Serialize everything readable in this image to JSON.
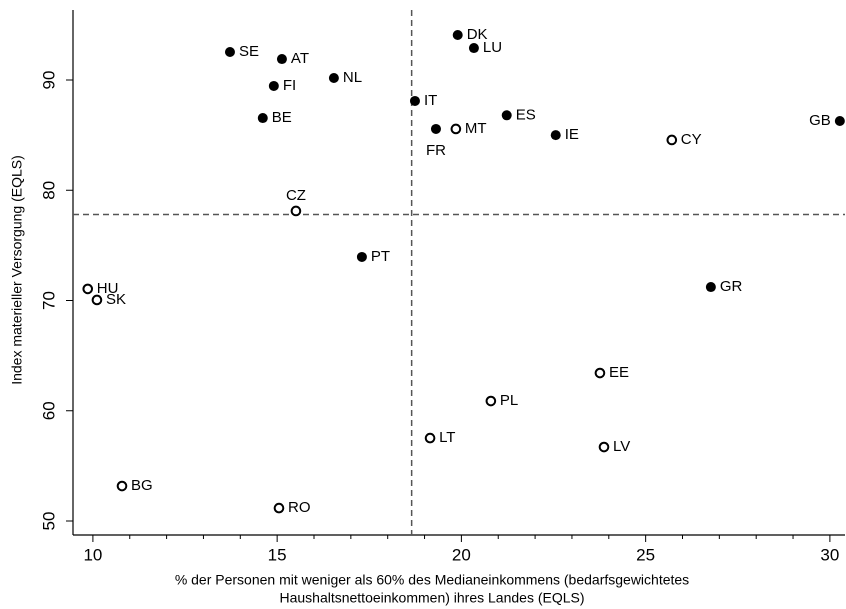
{
  "chart_data": {
    "type": "scatter",
    "xlabel": [
      "% der Personen mit weniger als 60% des Medianeinkommens (bedarfsgewichtetes",
      "Haushaltsnettoeinkommen) ihres Landes (EQLS)"
    ],
    "ylabel": "Index materieller Versorgung (EQLS)",
    "xlim": [
      9.46,
      30.41
    ],
    "ylim": [
      48.73,
      96.35
    ],
    "xticks": [
      10,
      15,
      20,
      25,
      30
    ],
    "yticks": [
      50,
      60,
      70,
      80,
      90
    ],
    "xminorticks": [
      11,
      12,
      13,
      14,
      16,
      17,
      18,
      19,
      21,
      22,
      23,
      24,
      26,
      27,
      28,
      29
    ],
    "vlines": [
      18.65
    ],
    "hlines": [
      77.8
    ],
    "color": "#000000",
    "points": [
      {
        "label": "SE",
        "x": 13.72,
        "y": 92.54,
        "filled": true
      },
      {
        "label": "AT",
        "x": 15.13,
        "y": 91.9,
        "filled": true
      },
      {
        "label": "FI",
        "x": 14.91,
        "y": 89.46,
        "filled": true
      },
      {
        "label": "NL",
        "x": 16.54,
        "y": 90.18,
        "filled": true
      },
      {
        "label": "BE",
        "x": 14.61,
        "y": 86.55,
        "filled": true
      },
      {
        "label": "DK",
        "x": 19.9,
        "y": 94.08,
        "filled": true
      },
      {
        "label": "LU",
        "x": 20.34,
        "y": 92.9,
        "filled": true
      },
      {
        "label": "IT",
        "x": 18.74,
        "y": 88.1,
        "filled": true
      },
      {
        "label": "ES",
        "x": 21.23,
        "y": 86.8,
        "filled": true
      },
      {
        "label": "FR",
        "x": 19.31,
        "y": 85.56,
        "filled": true
      },
      {
        "label": "MT",
        "x": 19.85,
        "y": 85.56,
        "filled": false
      },
      {
        "label": "IE",
        "x": 22.56,
        "y": 85.0,
        "filled": true
      },
      {
        "label": "CY",
        "x": 25.71,
        "y": 84.56,
        "filled": false
      },
      {
        "label": "GB",
        "x": 30.27,
        "y": 86.28,
        "filled": true
      },
      {
        "label": "CZ",
        "x": 15.51,
        "y": 78.12,
        "filled": false
      },
      {
        "label": "PT",
        "x": 17.3,
        "y": 73.95,
        "filled": true
      },
      {
        "label": "HU",
        "x": 9.86,
        "y": 71.05,
        "filled": false
      },
      {
        "label": "SK",
        "x": 10.11,
        "y": 70.05,
        "filled": false
      },
      {
        "label": "GR",
        "x": 26.77,
        "y": 71.22,
        "filled": true
      },
      {
        "label": "EE",
        "x": 23.76,
        "y": 63.42,
        "filled": false
      },
      {
        "label": "PL",
        "x": 20.8,
        "y": 60.88,
        "filled": false
      },
      {
        "label": "LT",
        "x": 19.15,
        "y": 57.52,
        "filled": false
      },
      {
        "label": "LV",
        "x": 23.87,
        "y": 56.71,
        "filled": false
      },
      {
        "label": "BG",
        "x": 10.79,
        "y": 53.17,
        "filled": false
      },
      {
        "label": "RO",
        "x": 15.05,
        "y": 51.17,
        "filled": false
      }
    ]
  }
}
